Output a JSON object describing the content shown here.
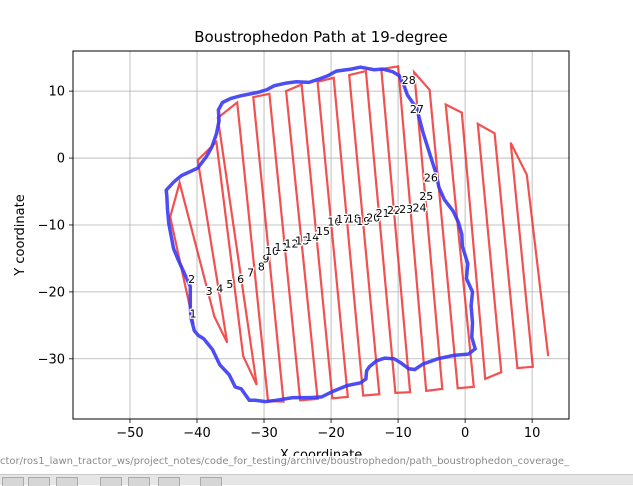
{
  "chart_data": {
    "type": "line",
    "title": "Boustrophedon Path at 19-degree",
    "xlabel": "X coordinate",
    "ylabel": "Y coordinate",
    "xlim": [
      -58.5,
      15.5
    ],
    "ylim": [
      -39,
      16
    ],
    "xticks": [
      -50,
      -40,
      -30,
      -20,
      -10,
      0,
      10
    ],
    "yticks": [
      -30,
      -20,
      -10,
      0,
      10
    ],
    "grid": true,
    "colors": {
      "boundary": "#3a3af5",
      "path": "#ee3333",
      "frame": "#000000",
      "grid": "#b0b0b0"
    },
    "boundary": [
      [
        -43.4,
        -3.5
      ],
      [
        -42.3,
        -2.6
      ],
      [
        -39.9,
        -1.5
      ],
      [
        -38.6,
        0.2
      ],
      [
        -37.8,
        1.6
      ],
      [
        -37.1,
        3.6
      ],
      [
        -36.7,
        5.6
      ],
      [
        -36.8,
        7.2
      ],
      [
        -36.2,
        8.3
      ],
      [
        -35.0,
        8.9
      ],
      [
        -33.5,
        9.3
      ],
      [
        -31.0,
        9.8
      ],
      [
        -29.6,
        10.2
      ],
      [
        -28.5,
        10.8
      ],
      [
        -26.7,
        11.2
      ],
      [
        -25.2,
        11.4
      ],
      [
        -23.3,
        11.3
      ],
      [
        -21.8,
        11.8
      ],
      [
        -20.5,
        12.3
      ],
      [
        -19.2,
        13.0
      ],
      [
        -17.0,
        13.3
      ],
      [
        -15.6,
        13.6
      ],
      [
        -13.6,
        13.2
      ],
      [
        -12.3,
        13.3
      ],
      [
        -10.8,
        12.9
      ],
      [
        -9.8,
        12.3
      ],
      [
        -9.1,
        10.8
      ],
      [
        -8.6,
        9.4
      ],
      [
        -7.2,
        7.4
      ],
      [
        -6.3,
        3.9
      ],
      [
        -5.3,
        0.7
      ],
      [
        -4.4,
        -2.1
      ],
      [
        -3.9,
        -4.4
      ],
      [
        -3.1,
        -6.2
      ],
      [
        -1.8,
        -7.9
      ],
      [
        -1.0,
        -9.6
      ],
      [
        -0.5,
        -11.4
      ],
      [
        -0.4,
        -13.2
      ],
      [
        0.4,
        -15.8
      ],
      [
        0.2,
        -18.0
      ],
      [
        1.1,
        -20.0
      ],
      [
        0.9,
        -22.1
      ],
      [
        1.1,
        -24.6
      ],
      [
        1.0,
        -26.8
      ],
      [
        1.5,
        -28.5
      ],
      [
        0.5,
        -29.3
      ],
      [
        -1.7,
        -29.5
      ],
      [
        -4.1,
        -30.0
      ],
      [
        -6.3,
        -30.8
      ],
      [
        -7.5,
        -31.6
      ],
      [
        -8.4,
        -31.5
      ],
      [
        -9.6,
        -30.6
      ],
      [
        -10.6,
        -30.0
      ],
      [
        -12.0,
        -29.9
      ],
      [
        -13.2,
        -30.3
      ],
      [
        -14.3,
        -31.2
      ],
      [
        -14.7,
        -31.8
      ],
      [
        -14.8,
        -33.0
      ],
      [
        -15.6,
        -33.6
      ],
      [
        -17.6,
        -34.0
      ],
      [
        -19.8,
        -34.9
      ],
      [
        -21.4,
        -35.7
      ],
      [
        -23.1,
        -35.8
      ],
      [
        -25.7,
        -35.8
      ],
      [
        -28.2,
        -36.2
      ],
      [
        -29.8,
        -36.4
      ],
      [
        -31.3,
        -36.2
      ],
      [
        -32.2,
        -36.2
      ],
      [
        -33.4,
        -34.5
      ],
      [
        -34.3,
        -34.2
      ],
      [
        -35.2,
        -32.4
      ],
      [
        -36.6,
        -30.9
      ],
      [
        -37.7,
        -28.6
      ],
      [
        -39.0,
        -27.0
      ],
      [
        -39.8,
        -26.5
      ],
      [
        -40.4,
        -25.8
      ],
      [
        -40.9,
        -23.9
      ],
      [
        -41.0,
        -22.2
      ],
      [
        -41.0,
        -19.2
      ],
      [
        -41.8,
        -17.4
      ],
      [
        -42.8,
        -15.2
      ],
      [
        -43.5,
        -13.5
      ],
      [
        -43.8,
        -11.9
      ],
      [
        -44.2,
        -9.8
      ],
      [
        -44.4,
        -7.7
      ],
      [
        -44.5,
        -5.6
      ],
      [
        -44.6,
        -4.8
      ],
      [
        -43.4,
        -3.5
      ]
    ],
    "path": [
      [
        -40.5,
        -24.8
      ],
      [
        -44.0,
        -8.8
      ],
      [
        -42.6,
        -3.7
      ],
      [
        -37.4,
        -23.7
      ],
      [
        -35.5,
        -27.6
      ],
      [
        -39.9,
        -0.3
      ],
      [
        -37.1,
        2.4
      ],
      [
        -33.1,
        -29.6
      ],
      [
        -31.1,
        -33.9
      ],
      [
        -36.9,
        6.0
      ],
      [
        -34.0,
        8.3
      ],
      [
        -29.4,
        -36.3
      ],
      [
        -27.1,
        -36.4
      ],
      [
        -31.6,
        9.1
      ],
      [
        -29.2,
        9.6
      ],
      [
        -24.6,
        -36.2
      ],
      [
        -22.0,
        -36.0
      ],
      [
        -26.7,
        10.0
      ],
      [
        -24.4,
        11.0
      ],
      [
        -19.8,
        -35.9
      ],
      [
        -17.5,
        -35.7
      ],
      [
        -22.0,
        11.4
      ],
      [
        -19.6,
        12.0
      ],
      [
        -15.2,
        -35.5
      ],
      [
        -12.8,
        -35.3
      ],
      [
        -17.3,
        12.4
      ],
      [
        -14.8,
        13.0
      ],
      [
        -10.4,
        -35.1
      ],
      [
        -8.2,
        -35.0
      ],
      [
        -12.5,
        13.3
      ],
      [
        -10.0,
        13.7
      ],
      [
        -5.8,
        -34.8
      ],
      [
        -3.4,
        -34.5
      ],
      [
        -7.6,
        12.8
      ],
      [
        -5.3,
        10.2
      ],
      [
        -1.1,
        -34.4
      ],
      [
        1.3,
        -34.2
      ],
      [
        -2.9,
        8.0
      ],
      [
        -0.5,
        6.8
      ],
      [
        3.0,
        -33.0
      ],
      [
        5.4,
        -32.0
      ],
      [
        1.9,
        5.1
      ],
      [
        4.4,
        3.7
      ],
      [
        7.8,
        -31.4
      ],
      [
        10.1,
        -31.2
      ],
      [
        6.8,
        2.3
      ],
      [
        9.2,
        -2.5
      ],
      [
        12.4,
        -29.6
      ]
    ],
    "labels": [
      {
        "text": "1",
        "x": -40.6,
        "y": -23.2
      },
      {
        "text": "2",
        "x": -40.8,
        "y": -18.1
      },
      {
        "text": "3",
        "x": -38.2,
        "y": -19.9
      },
      {
        "text": "4",
        "x": -36.6,
        "y": -19.5
      },
      {
        "text": "5",
        "x": -35.1,
        "y": -18.8
      },
      {
        "text": "6",
        "x": -33.5,
        "y": -18.1
      },
      {
        "text": "7",
        "x": -32.0,
        "y": -17.1
      },
      {
        "text": "8",
        "x": -30.4,
        "y": -16.2
      },
      {
        "text": "9",
        "x": -29.7,
        "y": -15.0
      },
      {
        "text": "10",
        "x": -28.8,
        "y": -13.9
      },
      {
        "text": "11",
        "x": -27.4,
        "y": -13.3
      },
      {
        "text": "12",
        "x": -25.9,
        "y": -12.8
      },
      {
        "text": "13",
        "x": -24.3,
        "y": -12.3
      },
      {
        "text": "14",
        "x": -22.8,
        "y": -11.8
      },
      {
        "text": "15",
        "x": -21.2,
        "y": -10.9
      },
      {
        "text": "16",
        "x": -19.5,
        "y": -9.5
      },
      {
        "text": "17",
        "x": -18.2,
        "y": -9.1
      },
      {
        "text": "18",
        "x": -16.6,
        "y": -9.0
      },
      {
        "text": "19",
        "x": -15.2,
        "y": -9.4
      },
      {
        "text": "20",
        "x": -13.7,
        "y": -8.9
      },
      {
        "text": "21",
        "x": -12.3,
        "y": -8.2
      },
      {
        "text": "22",
        "x": -10.6,
        "y": -7.8
      },
      {
        "text": "23",
        "x": -8.8,
        "y": -7.6
      },
      {
        "text": "24",
        "x": -6.8,
        "y": -7.4
      },
      {
        "text": "25",
        "x": -5.8,
        "y": -5.7
      },
      {
        "text": "26",
        "x": -5.1,
        "y": -2.9
      },
      {
        "text": "27",
        "x": -7.2,
        "y": 7.3
      },
      {
        "text": "28",
        "x": -8.4,
        "y": 11.7
      }
    ]
  },
  "file_path_text": "ctor/ros1_lawn_tractor_ws/project_notes/code_for_testing/archive/boustrophedon/path_boustrophedon_coverage_"
}
